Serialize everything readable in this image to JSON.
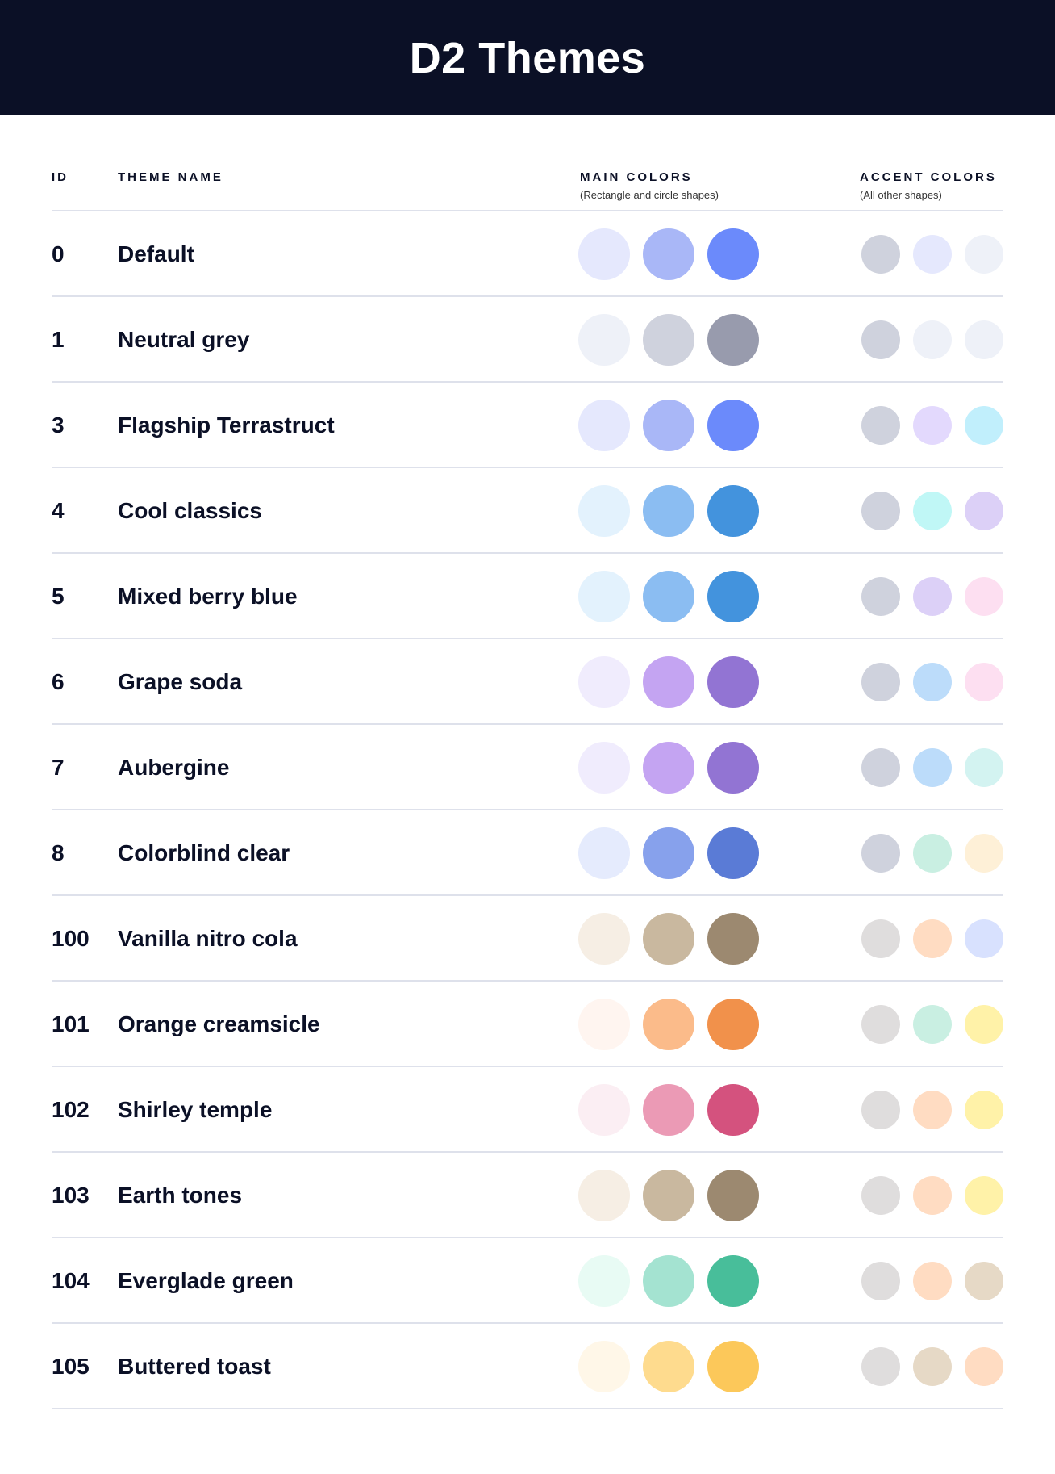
{
  "title": "D2 Themes",
  "columns": {
    "id": "ID",
    "name": "THEME NAME",
    "main": "MAIN COLORS",
    "main_sub": "(Rectangle and circle shapes)",
    "accent": "ACCENT COLORS",
    "accent_sub": "(All other shapes)"
  },
  "themes": [
    {
      "id": "0",
      "name": "Default",
      "main": [
        "#E5E8FD",
        "#A9B7F7",
        "#6B8AFB"
      ],
      "accent": [
        "#CFD2DD",
        "#E5E8FD",
        "#EEF1F8"
      ]
    },
    {
      "id": "1",
      "name": "Neutral grey",
      "main": [
        "#EEF1F8",
        "#CFD2DD",
        "#989BAD"
      ],
      "accent": [
        "#CFD2DD",
        "#EEF1F8",
        "#EEF1F8"
      ]
    },
    {
      "id": "3",
      "name": "Flagship Terrastruct",
      "main": [
        "#E5E8FD",
        "#A9B7F7",
        "#6B8AFB"
      ],
      "accent": [
        "#CFD2DD",
        "#E3D9FD",
        "#C1EFFC"
      ]
    },
    {
      "id": "4",
      "name": "Cool classics",
      "main": [
        "#E3F2FD",
        "#8BBDF2",
        "#4393DD"
      ],
      "accent": [
        "#CFD2DD",
        "#C0F7F6",
        "#DCD0F7"
      ]
    },
    {
      "id": "5",
      "name": "Mixed berry blue",
      "main": [
        "#E3F2FD",
        "#8BBDF2",
        "#4393DD"
      ],
      "accent": [
        "#CFD2DD",
        "#DCD0F7",
        "#FDDFF1"
      ]
    },
    {
      "id": "6",
      "name": "Grape soda",
      "main": [
        "#F0ECFD",
        "#C4A4F2",
        "#9274D3"
      ],
      "accent": [
        "#CFD2DD",
        "#BCDCFA",
        "#FDDFF1"
      ]
    },
    {
      "id": "7",
      "name": "Aubergine",
      "main": [
        "#F0ECFD",
        "#C4A4F2",
        "#9274D3"
      ],
      "accent": [
        "#CFD2DD",
        "#BCDCFA",
        "#D3F3F1"
      ]
    },
    {
      "id": "8",
      "name": "Colorblind clear",
      "main": [
        "#E5EBFD",
        "#87A1EC",
        "#5A7BD6"
      ],
      "accent": [
        "#CFD2DD",
        "#C9EFE2",
        "#FEF0D7"
      ]
    },
    {
      "id": "100",
      "name": "Vanilla nitro cola",
      "main": [
        "#F6EEE4",
        "#C9B89F",
        "#9C8970"
      ],
      "accent": [
        "#DFDDDD",
        "#FFDCC2",
        "#D8E1FE"
      ]
    },
    {
      "id": "101",
      "name": "Orange creamsicle",
      "main": [
        "#FFF5F0",
        "#FBBB8A",
        "#F1914B"
      ],
      "accent": [
        "#DFDDDD",
        "#C9EFE2",
        "#FFF2A8"
      ]
    },
    {
      "id": "102",
      "name": "Shirley temple",
      "main": [
        "#FBEEF3",
        "#EB9AB5",
        "#D4527E"
      ],
      "accent": [
        "#DFDDDD",
        "#FFDCC2",
        "#FFF2A8"
      ]
    },
    {
      "id": "103",
      "name": "Earth tones",
      "main": [
        "#F6EEE4",
        "#C9B89F",
        "#9C8970"
      ],
      "accent": [
        "#DFDDDD",
        "#FFDCC2",
        "#FFF2A8"
      ]
    },
    {
      "id": "104",
      "name": "Everglade green",
      "main": [
        "#E8FBF4",
        "#A4E3D1",
        "#48BE9A"
      ],
      "accent": [
        "#DFDDDD",
        "#FFDCC2",
        "#E6D9C6"
      ]
    },
    {
      "id": "105",
      "name": "Buttered toast",
      "main": [
        "#FFF7E8",
        "#FEDB8E",
        "#FCC85A"
      ],
      "accent": [
        "#DFDDDD",
        "#E6D9C6",
        "#FFDCC2"
      ]
    }
  ],
  "colors": {
    "header_bg": "#0B1026",
    "text": "#0B1026",
    "divider": "#DEE1EB"
  }
}
